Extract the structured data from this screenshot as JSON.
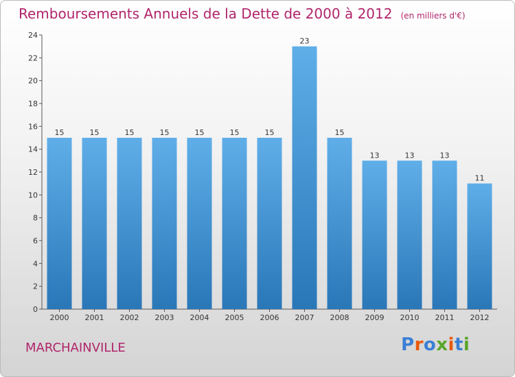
{
  "title": "Remboursements Annuels de la Dette de 2000 à 2012",
  "unit": "(en milliers d'€)",
  "city": "MARCHAINVILLE",
  "logo": {
    "text": "Proxiti",
    "letter_colors": [
      "#3a7fd5",
      "#e8590c",
      "#3a7fd5",
      "#5aa52a",
      "#e8590c",
      "#3a7fd5",
      "#5aa52a"
    ]
  },
  "colors": {
    "bar_top": "#5faee8",
    "bar_bottom": "#2a77b8",
    "title": "#b0246a"
  },
  "chart_data": {
    "type": "bar",
    "categories": [
      "2000",
      "2001",
      "2002",
      "2003",
      "2004",
      "2005",
      "2006",
      "2007",
      "2008",
      "2009",
      "2010",
      "2011",
      "2012"
    ],
    "values": [
      15,
      15,
      15,
      15,
      15,
      15,
      15,
      23,
      15,
      13,
      13,
      13,
      11
    ],
    "ylim": [
      0,
      24
    ],
    "yticks": [
      0,
      2,
      4,
      6,
      8,
      10,
      12,
      14,
      16,
      18,
      20,
      22,
      24
    ],
    "grid": false,
    "data_labels": true
  }
}
